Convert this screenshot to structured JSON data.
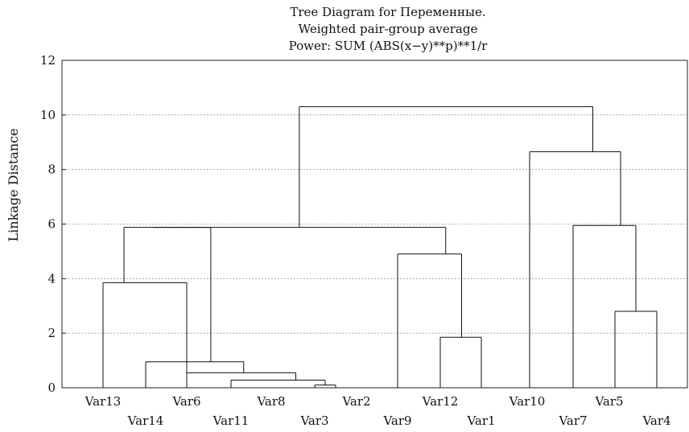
{
  "chart_data": {
    "type": "dendrogram",
    "title": [
      "Tree Diagram for Переменные.",
      "Weighted pair-group average",
      "Power: SUM (ABS(x−y)**p)**1/r"
    ],
    "xlabel": "",
    "ylabel": "Linkage Distance",
    "ylim": [
      0,
      12
    ],
    "yticks": [
      0,
      2,
      4,
      6,
      8,
      10,
      12
    ],
    "grid": true,
    "leaves": [
      "Var13",
      "Var14",
      "Var6",
      "Var11",
      "Var8",
      "Var3",
      "Var2",
      "Var9",
      "Var12",
      "Var1",
      "Var10",
      "Var7",
      "Var5",
      "Var4"
    ],
    "merges": [
      {
        "left": "Var3",
        "right": "Var2",
        "height": 0.1
      },
      {
        "left": "Var8",
        "right": "(Var3,Var2)",
        "height": 0.28
      },
      {
        "left": "Var11",
        "right": "(Var8,Var3,Var2)",
        "height": 0.55
      },
      {
        "left": "Var6",
        "right": "(Var11,Var8,Var3,Var2)",
        "height": 0.95
      },
      {
        "left": "Var12",
        "right": "Var1",
        "height": 1.85
      },
      {
        "left": "Var5",
        "right": "Var4",
        "height": 2.8
      },
      {
        "left": "Var13",
        "right": "Var14",
        "height": 3.85
      },
      {
        "left": "Var9",
        "right": "(Var12,Var1)",
        "height": 4.9
      },
      {
        "left": "(Var13,Var14)",
        "right": "(Var6,...,Var2)",
        "height": 5.85
      },
      {
        "left": "Var7",
        "right": "(Var5,Var4)",
        "height": 5.95
      },
      {
        "left": "Var10",
        "right": "(Var7,Var5,Var4)",
        "height": 8.65
      },
      {
        "left": "(Var13,...,Var2)",
        "right": "(Var9,Var12,Var1)",
        "height": 5.88
      },
      {
        "left": "(left cluster)",
        "right": "(right cluster)",
        "height": 10.3
      }
    ]
  }
}
